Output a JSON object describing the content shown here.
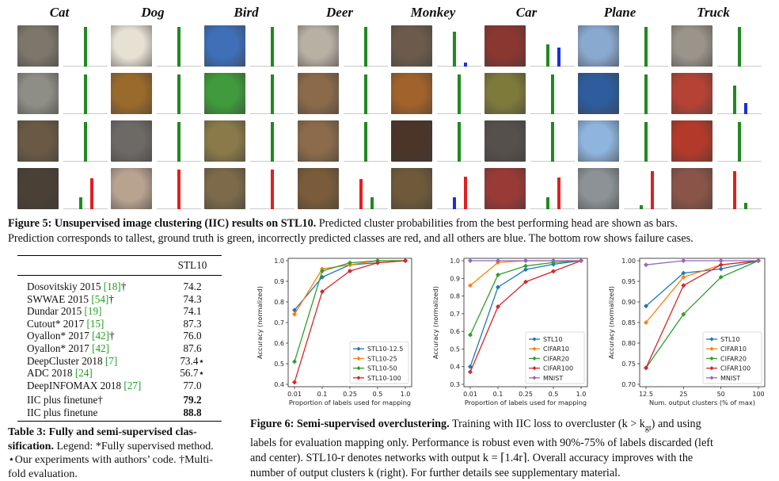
{
  "figure5": {
    "classes": [
      "Cat",
      "Dog",
      "Bird",
      "Deer",
      "Monkey",
      "Car",
      "Plane",
      "Truck"
    ],
    "thumb_colors": [
      [
        "#7d776b",
        "#e7e1d4",
        "#3f6fb7",
        "#b8b0a3",
        "#6c5b4c",
        "#8a3631",
        "#8aa9cf",
        "#9a948a"
      ],
      [
        "#8e8d86",
        "#9a6a2c",
        "#3f9b3b",
        "#8a6a4a",
        "#a1622b",
        "#7e7a3c",
        "#2e5c9c",
        "#b44336"
      ],
      [
        "#6a5a45",
        "#6d6a66",
        "#8a7a4a",
        "#8b6b4b",
        "#4b3428",
        "#56504c",
        "#8fb4dd",
        "#b33a2a"
      ],
      [
        "#4a4035",
        "#b8a391",
        "#7c6a4a",
        "#7a5c3a",
        "#6e5a3a",
        "#9a3a37",
        "#8c9296",
        "#8a5548"
      ]
    ],
    "bars": [
      [
        [
          {
            "p": 1.0,
            "c": "green"
          }
        ],
        [
          {
            "p": 1.0,
            "c": "green"
          }
        ],
        [
          {
            "p": 1.0,
            "c": "green"
          }
        ],
        [
          {
            "p": 1.0,
            "c": "green"
          }
        ],
        [
          {
            "p": 0.88,
            "c": "green"
          },
          {
            "p": 0.1,
            "c": "blue"
          }
        ],
        [
          {
            "p": 0.55,
            "c": "green"
          },
          {
            "p": 0.48,
            "c": "blue"
          }
        ],
        [
          {
            "p": 1.0,
            "c": "green"
          }
        ],
        [
          {
            "p": 1.0,
            "c": "green"
          }
        ]
      ],
      [
        [
          {
            "p": 1.0,
            "c": "green"
          }
        ],
        [
          {
            "p": 1.0,
            "c": "green"
          }
        ],
        [
          {
            "p": 1.0,
            "c": "green"
          }
        ],
        [
          {
            "p": 1.0,
            "c": "green"
          }
        ],
        [
          {
            "p": 1.0,
            "c": "green"
          }
        ],
        [
          {
            "p": 1.0,
            "c": "green"
          }
        ],
        [
          {
            "p": 1.0,
            "c": "green"
          }
        ],
        [
          {
            "p": 0.72,
            "c": "green"
          },
          {
            "p": 0.28,
            "c": "blue"
          }
        ]
      ],
      [
        [
          {
            "p": 1.0,
            "c": "green"
          }
        ],
        [
          {
            "p": 1.0,
            "c": "green"
          }
        ],
        [
          {
            "p": 1.0,
            "c": "green"
          }
        ],
        [
          {
            "p": 1.0,
            "c": "green"
          }
        ],
        [
          {
            "p": 1.0,
            "c": "green"
          }
        ],
        [
          {
            "p": 1.0,
            "c": "green"
          }
        ],
        [
          {
            "p": 1.0,
            "c": "green"
          }
        ],
        [
          {
            "p": 1.0,
            "c": "green"
          }
        ]
      ],
      [
        [
          {
            "p": 0.3,
            "c": "green"
          },
          {
            "p": 0.78,
            "c": "red"
          }
        ],
        [
          {
            "p": 1.0,
            "c": "red"
          }
        ],
        [
          {
            "p": 1.0,
            "c": "red"
          }
        ],
        [
          {
            "p": 0.75,
            "c": "red"
          },
          {
            "p": 0.3,
            "c": "green"
          }
        ],
        [
          {
            "p": 0.3,
            "c": "blue"
          },
          {
            "p": 0.82,
            "c": "red"
          }
        ],
        [
          {
            "p": 0.3,
            "c": "green"
          },
          {
            "p": 0.8,
            "c": "red"
          }
        ],
        [
          {
            "p": 0.1,
            "c": "green"
          },
          {
            "p": 0.95,
            "c": "red"
          }
        ],
        [
          {
            "p": 0.95,
            "c": "red"
          },
          {
            "p": 0.16,
            "c": "green"
          }
        ]
      ]
    ],
    "caption_bold": "Figure 5: Unsupervised image clustering (IIC) results on STL10.",
    "caption_rest_line1": " Predicted cluster probabilities from the best performing head are shown as bars.",
    "caption_line2": "Prediction corresponds to tallest, ground truth is green, incorrectly predicted classes are red, and all others are blue. The bottom row shows failure cases."
  },
  "table3": {
    "header": "STL10",
    "rows": [
      {
        "name": "Dosovitskiy 2015 ",
        "cite": "[18]",
        "suffix": "†",
        "value": "74.2",
        "bold": false
      },
      {
        "name": "SWWAE 2015 ",
        "cite": "[54]",
        "suffix": "†",
        "value": "74.3",
        "bold": false
      },
      {
        "name": "Dundar 2015 ",
        "cite": "[19]",
        "suffix": "",
        "value": "74.1",
        "bold": false
      },
      {
        "name": "Cutout* 2017 ",
        "cite": "[15]",
        "suffix": "",
        "value": "87.3",
        "bold": false
      },
      {
        "name": "Oyallon* 2017 ",
        "cite": "[42]",
        "suffix": "†",
        "value": "76.0",
        "bold": false
      },
      {
        "name": "Oyallon* 2017 ",
        "cite": "[42]",
        "suffix": "",
        "value": "87.6",
        "bold": false
      },
      {
        "name": "DeepCluster 2018 ",
        "cite": "[7]",
        "suffix": "",
        "value": "73.4⋆",
        "bold": false
      },
      {
        "name": "ADC 2018 ",
        "cite": "[24]",
        "suffix": "",
        "value": "56.7⋆",
        "bold": false
      },
      {
        "name": "DeepINFOMAX 2018 ",
        "cite": "[27]",
        "suffix": "",
        "value": "77.0",
        "bold": false
      },
      {
        "name": "IIC plus finetune†",
        "cite": "",
        "suffix": "",
        "value": "79.2",
        "bold": true
      },
      {
        "name": "IIC plus finetune",
        "cite": "",
        "suffix": "",
        "value": "88.8",
        "bold": true
      }
    ],
    "caption_bold": "Table 3: Fully and semi-supervised clas-sification.",
    "caption_rest": " Legend: *Fully supervised method. ⋆Our experiments with authors’ code. †Multi-fold evaluation."
  },
  "chart_data": [
    {
      "type": "line",
      "xlabel": "Proportion of labels used for mapping",
      "ylabel": "Accuracy (normalized)",
      "x": [
        "0.01",
        "0.1",
        "0.25",
        "0.5",
        "1.0"
      ],
      "ylim": [
        0.4,
        1.0
      ],
      "yticks": [
        "0.4",
        "0.5",
        "0.6",
        "0.7",
        "0.8",
        "0.9",
        "1.0"
      ],
      "legend_position": "bottom-right",
      "series": [
        {
          "name": "STL10-12.5",
          "color": "#1f77b4",
          "values": [
            0.76,
            0.92,
            0.98,
            0.99,
            1.0
          ]
        },
        {
          "name": "STL10-25",
          "color": "#ff7f0e",
          "values": [
            0.74,
            0.96,
            0.98,
            1.0,
            1.0
          ]
        },
        {
          "name": "STL10-50",
          "color": "#2ca02c",
          "values": [
            0.51,
            0.95,
            0.99,
            1.0,
            1.0
          ]
        },
        {
          "name": "STL10-100",
          "color": "#d62728",
          "values": [
            0.41,
            0.85,
            0.95,
            0.99,
            1.0
          ]
        }
      ]
    },
    {
      "type": "line",
      "xlabel": "Proportion of labels used for mapping",
      "ylabel": "Accuracy (normalized)",
      "x": [
        "0.01",
        "0.1",
        "0.25",
        "0.5",
        "1.0"
      ],
      "ylim": [
        0.3,
        1.0
      ],
      "yticks": [
        "0.3",
        "0.4",
        "0.5",
        "0.6",
        "0.7",
        "0.8",
        "0.9",
        "1.0"
      ],
      "legend_position": "bottom-right",
      "series": [
        {
          "name": "STL10",
          "color": "#1f77b4",
          "values": [
            0.4,
            0.85,
            0.95,
            0.98,
            1.0
          ]
        },
        {
          "name": "CIFAR10",
          "color": "#ff7f0e",
          "values": [
            0.86,
            0.99,
            1.0,
            1.0,
            1.0
          ]
        },
        {
          "name": "CIFAR20",
          "color": "#2ca02c",
          "values": [
            0.58,
            0.92,
            0.97,
            0.99,
            1.0
          ]
        },
        {
          "name": "CIFAR100",
          "color": "#d62728",
          "values": [
            0.37,
            0.74,
            0.88,
            0.94,
            1.0
          ]
        },
        {
          "name": "MNIST",
          "color": "#9467bd",
          "values": [
            1.0,
            1.0,
            1.0,
            1.0,
            1.0
          ]
        }
      ]
    },
    {
      "type": "line",
      "xlabel": "Num. output clusters (% of max)",
      "ylabel": "Accuracy (normalized)",
      "x": [
        "12.5",
        "25",
        "50",
        "100"
      ],
      "ylim": [
        0.7,
        1.0
      ],
      "yticks": [
        "0.70",
        "0.75",
        "0.80",
        "0.85",
        "0.90",
        "0.95",
        "1.00"
      ],
      "legend_position": "bottom-right",
      "series": [
        {
          "name": "STL10",
          "color": "#1f77b4",
          "values": [
            0.89,
            0.97,
            0.98,
            1.0
          ]
        },
        {
          "name": "CIFAR10",
          "color": "#ff7f0e",
          "values": [
            0.85,
            0.96,
            0.99,
            1.0
          ]
        },
        {
          "name": "CIFAR20",
          "color": "#2ca02c",
          "values": [
            0.74,
            0.87,
            0.96,
            1.0
          ]
        },
        {
          "name": "CIFAR100",
          "color": "#d62728",
          "values": [
            0.74,
            0.94,
            0.99,
            1.0
          ]
        },
        {
          "name": "MNIST",
          "color": "#9467bd",
          "values": [
            0.99,
            1.0,
            1.0,
            1.0
          ]
        }
      ]
    }
  ],
  "figure6": {
    "cap_bold": "Figure 6: Semi-supervised overclustering.",
    "cap_l1": " Training with IIC loss to overcluster (k > k",
    "cap_l1_sub": "gt",
    "cap_l1_end": ") and using",
    "cap_l2": "labels for evaluation mapping only. Performance is robust even with 90%-75% of labels discarded (left",
    "cap_l3": "and center). STL10-r denotes networks with output k = ⌈1.4r⌉. Overall accuracy improves with the",
    "cap_l4": "number of output clusters k (right). For further details see supplementary material."
  }
}
